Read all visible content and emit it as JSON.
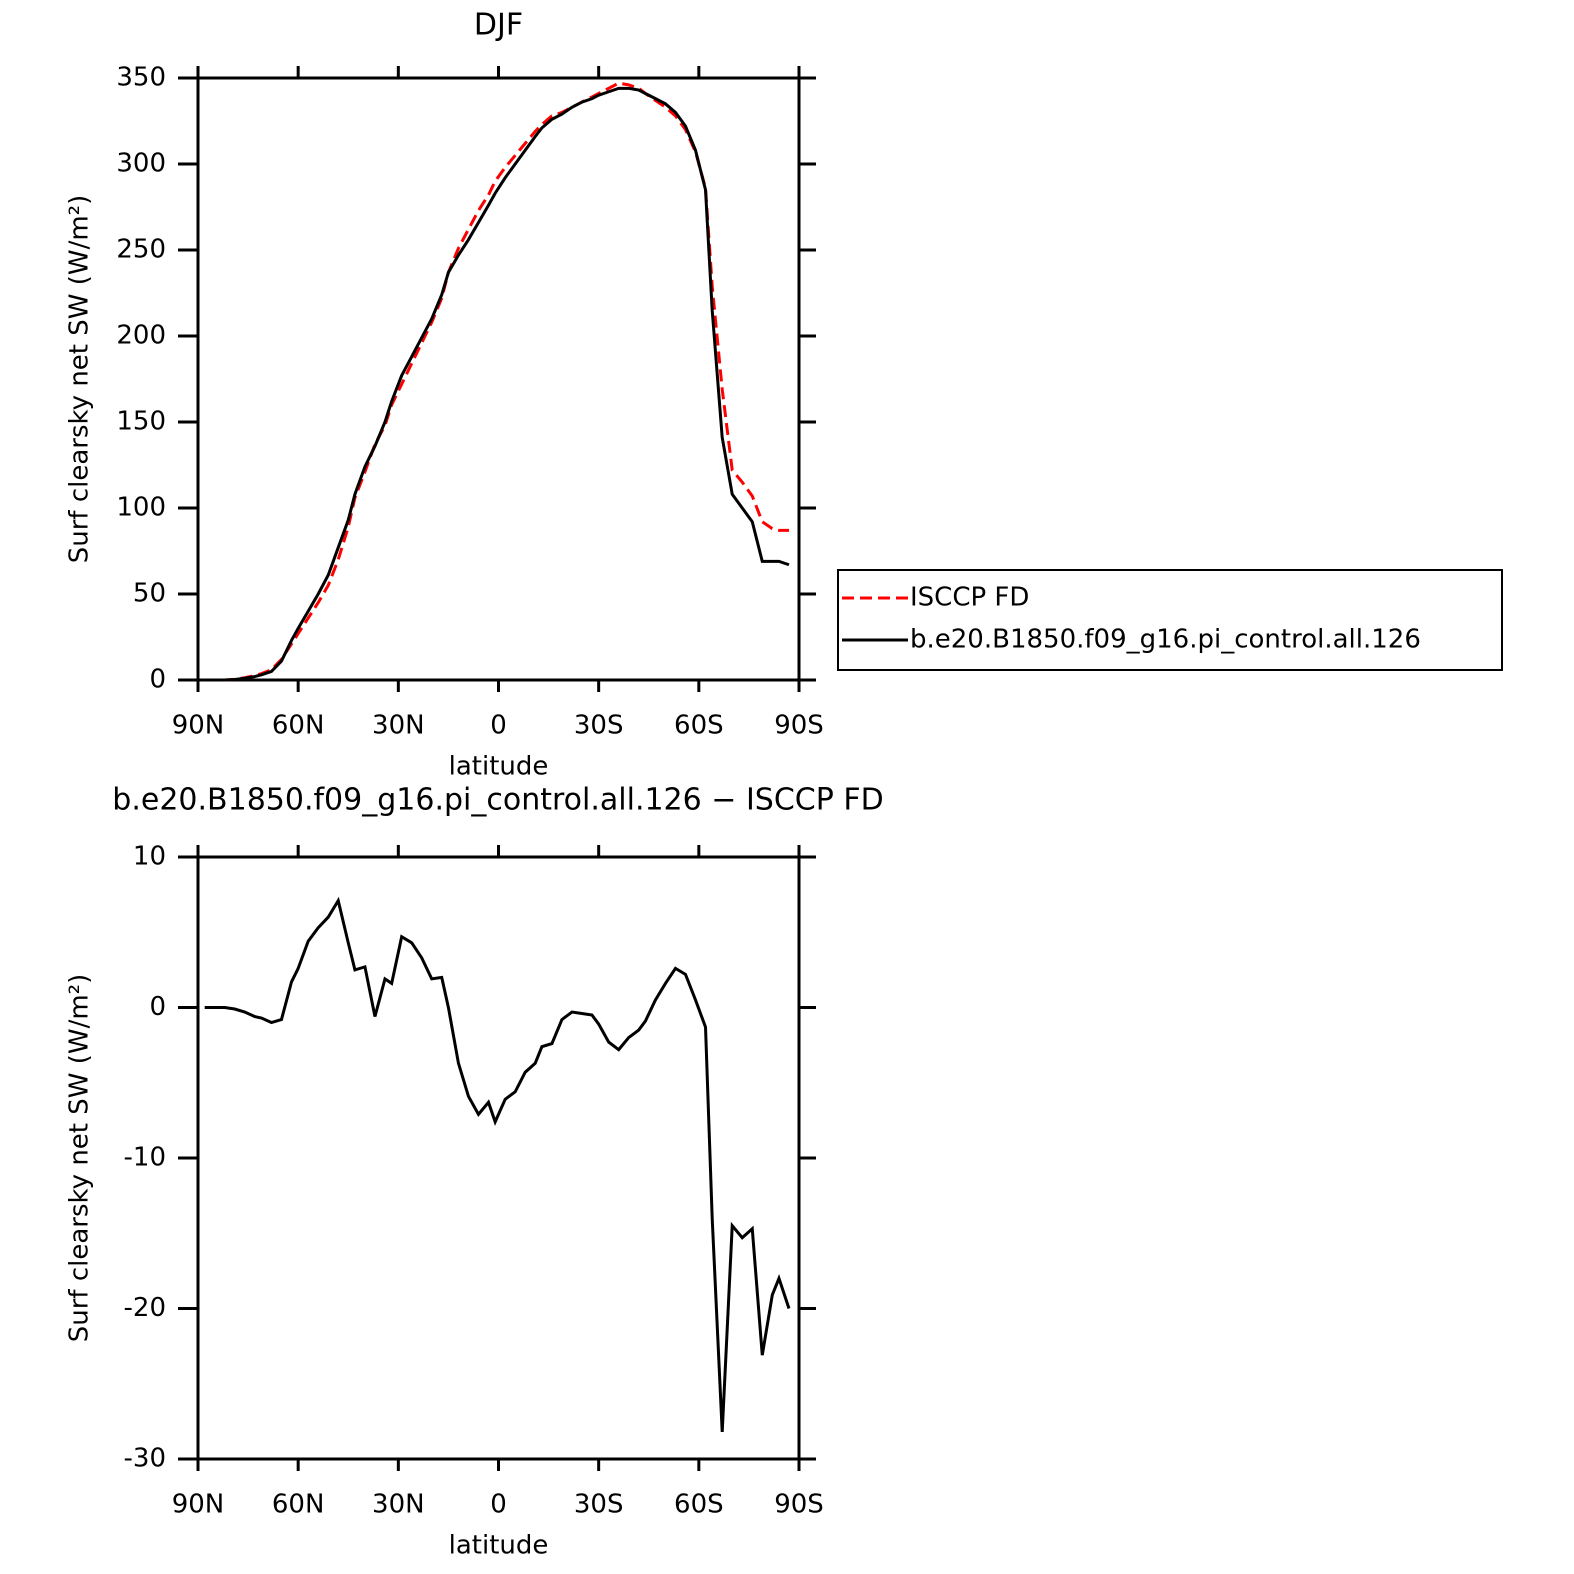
{
  "chart_data": [
    {
      "type": "line",
      "title": "DJF",
      "xlabel": "latitude",
      "ylabel": "Surf clearsky net SW (W/m²)",
      "x": [
        88,
        85,
        82,
        79,
        76,
        73,
        71,
        68,
        65,
        62,
        60,
        57,
        54,
        51,
        48,
        45,
        43,
        40,
        37,
        34,
        32,
        29,
        26,
        23,
        20,
        17,
        15,
        12,
        9,
        6,
        3,
        1,
        -2,
        -5,
        -8,
        -11,
        -13,
        -16,
        -19,
        -22,
        -25,
        -28,
        -30,
        -33,
        -36,
        -39,
        -42,
        -44,
        -47,
        -50,
        -53,
        -56,
        -59,
        -62,
        -64,
        -67,
        -70,
        -73,
        -76,
        -79,
        -82,
        -84,
        -87
      ],
      "series": [
        {
          "name": "ISCCP FD",
          "color": "#ff0000",
          "style": "dashed",
          "values": [
            0,
            0,
            0,
            0.4,
            1.3,
            2.6,
            3.7,
            6,
            12,
            21,
            27,
            36,
            45,
            55,
            70,
            89,
            106,
            121,
            137,
            148,
            160,
            172,
            184,
            196,
            208,
            222,
            237,
            251,
            262,
            273,
            282,
            290,
            298,
            305,
            312,
            319,
            323,
            328,
            330,
            333,
            336,
            339,
            341,
            344,
            347,
            346,
            344,
            341,
            337,
            333,
            328,
            320,
            307,
            286,
            229,
            169,
            122,
            115,
            107,
            92,
            88,
            87,
            87
          ]
        },
        {
          "name": "b.e20.B1850.f09_g16.pi_control.all.126",
          "color": "#000000",
          "style": "solid",
          "values": [
            0,
            0,
            0,
            0.3,
            1,
            2,
            3,
            5,
            11,
            23,
            30,
            40,
            50,
            61,
            77,
            93,
            108,
            124,
            136,
            150,
            162,
            177,
            188,
            199,
            210,
            224,
            237,
            247,
            256,
            266,
            276,
            283,
            292,
            300,
            308,
            316,
            321,
            326,
            329,
            333,
            336,
            338,
            340,
            342,
            344,
            344,
            343,
            341,
            338,
            335,
            330,
            322,
            308,
            285,
            215,
            141,
            108,
            100,
            92,
            69,
            69,
            69,
            67
          ]
        }
      ],
      "xlim": [
        90,
        -90
      ],
      "xticks": [
        {
          "value": 90,
          "label": "90N"
        },
        {
          "value": 60,
          "label": "60N"
        },
        {
          "value": 30,
          "label": "30N"
        },
        0,
        {
          "value": -30,
          "label": "30S"
        },
        {
          "value": -60,
          "label": "60S"
        },
        {
          "value": -90,
          "label": "90S"
        }
      ],
      "ylim": [
        0,
        350
      ],
      "yticks": [
        0,
        50,
        100,
        150,
        200,
        250,
        300,
        350
      ],
      "legend": "right"
    },
    {
      "type": "line",
      "title": "b.e20.B1850.f09_g16.pi_control.all.126 − ISCCP FD",
      "xlabel": "latitude",
      "ylabel": "Surf clearsky net SW (W/m²)",
      "x": [
        88,
        85,
        82,
        79,
        76,
        73,
        71,
        68,
        65,
        62,
        60,
        57,
        54,
        51,
        48,
        45,
        43,
        40,
        37,
        34,
        32,
        29,
        26,
        23,
        20,
        17,
        15,
        12,
        9,
        6,
        3,
        1,
        -2,
        -5,
        -8,
        -11,
        -13,
        -16,
        -19,
        -22,
        -25,
        -28,
        -30,
        -33,
        -36,
        -39,
        -42,
        -44,
        -47,
        -50,
        -53,
        -56,
        -59,
        -62,
        -64,
        -67,
        -70,
        -73,
        -76,
        -79,
        -82,
        -84,
        -87
      ],
      "series": [
        {
          "color": "#000000",
          "style": "solid",
          "values": [
            0,
            0,
            0,
            -0.1,
            -0.3,
            -0.6,
            -0.7,
            -1.0,
            -0.8,
            1.7,
            2.6,
            4.4,
            5.3,
            6.0,
            7.1,
            4.3,
            2.5,
            2.7,
            -0.6,
            1.9,
            1.6,
            4.7,
            4.3,
            3.3,
            1.9,
            2.0,
            0.0,
            -3.7,
            -5.9,
            -7.1,
            -6.3,
            -7.6,
            -6.1,
            -5.6,
            -4.3,
            -3.7,
            -2.6,
            -2.4,
            -0.8,
            -0.3,
            -0.4,
            -0.5,
            -1.1,
            -2.3,
            -2.8,
            -2.0,
            -1.5,
            -0.9,
            0.5,
            1.6,
            2.6,
            2.2,
            0.5,
            -1.3,
            -14,
            -28.2,
            -14.5,
            -15.3,
            -14.7,
            -23.1,
            -19.1,
            -18.0,
            -20.0
          ]
        }
      ],
      "xlim": [
        90,
        -90
      ],
      "xticks": [
        {
          "value": 90,
          "label": "90N"
        },
        {
          "value": 60,
          "label": "60N"
        },
        {
          "value": 30,
          "label": "30N"
        },
        0,
        {
          "value": -30,
          "label": "30S"
        },
        {
          "value": -60,
          "label": "60S"
        },
        {
          "value": -90,
          "label": "90S"
        }
      ],
      "ylim": [
        -30,
        10
      ],
      "yticks": [
        -30,
        -20,
        -10,
        0,
        10
      ]
    }
  ]
}
